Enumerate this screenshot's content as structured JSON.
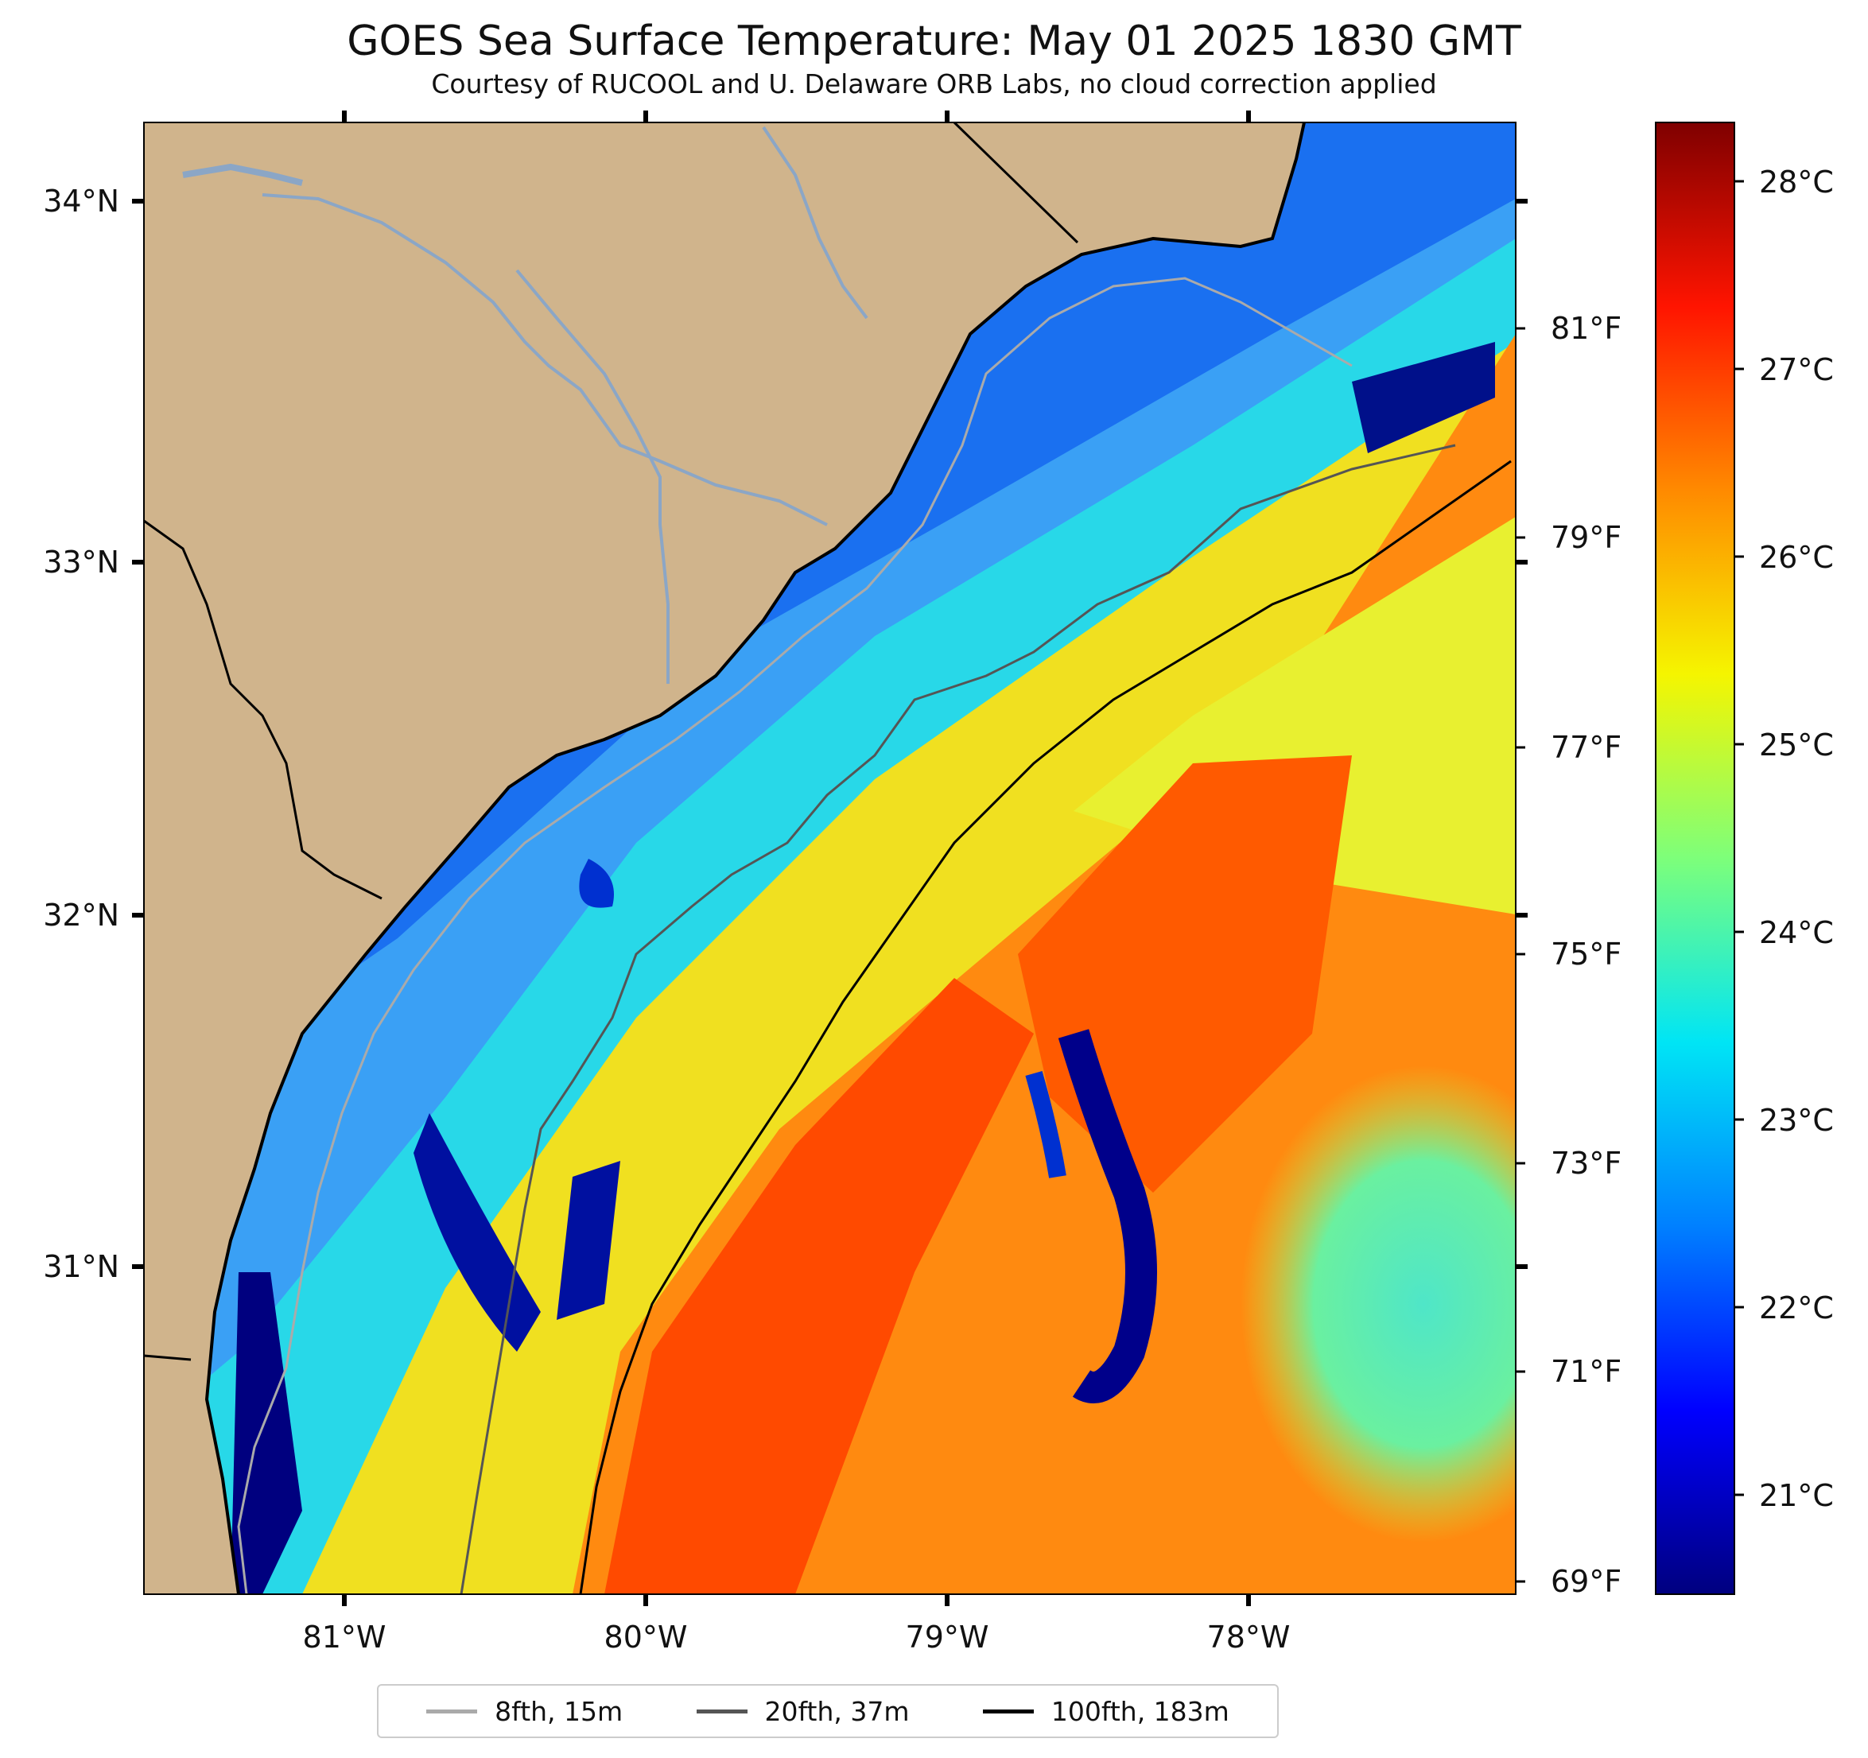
{
  "title": "GOES Sea Surface Temperature: May 01 2025 1830 GMT",
  "subtitle": "Courtesy of RUCOOL and U. Delaware ORB Labs, no cloud correction applied",
  "axes": {
    "lat_labels": [
      "34°N",
      "33°N",
      "32°N",
      "31°N"
    ],
    "lon_labels": [
      "81°W",
      "80°W",
      "79°W",
      "78°W"
    ],
    "fahrenheit_labels": [
      "81°F",
      "79°F",
      "77°F",
      "75°F",
      "73°F",
      "71°F",
      "69°F"
    ]
  },
  "colorbar": {
    "labels": [
      "28°C",
      "27°C",
      "26°C",
      "25°C",
      "24°C",
      "23°C",
      "22°C",
      "21°C"
    ],
    "colormap": "jet",
    "colors": [
      "#00007f",
      "#0000ff",
      "#0080ff",
      "#00e5f5",
      "#7dff7a",
      "#f5f500",
      "#ff8a00",
      "#ff1400",
      "#7f0000"
    ]
  },
  "legend": [
    {
      "label": "8fth, 15m",
      "color": "#aaaaaa"
    },
    {
      "label": "20fth, 37m",
      "color": "#555555"
    },
    {
      "label": "100fth, 183m",
      "color": "#000000"
    }
  ],
  "colors": {
    "land": "#d0b48c",
    "coast": "#000000",
    "rivers": "#8ba6c6"
  }
}
